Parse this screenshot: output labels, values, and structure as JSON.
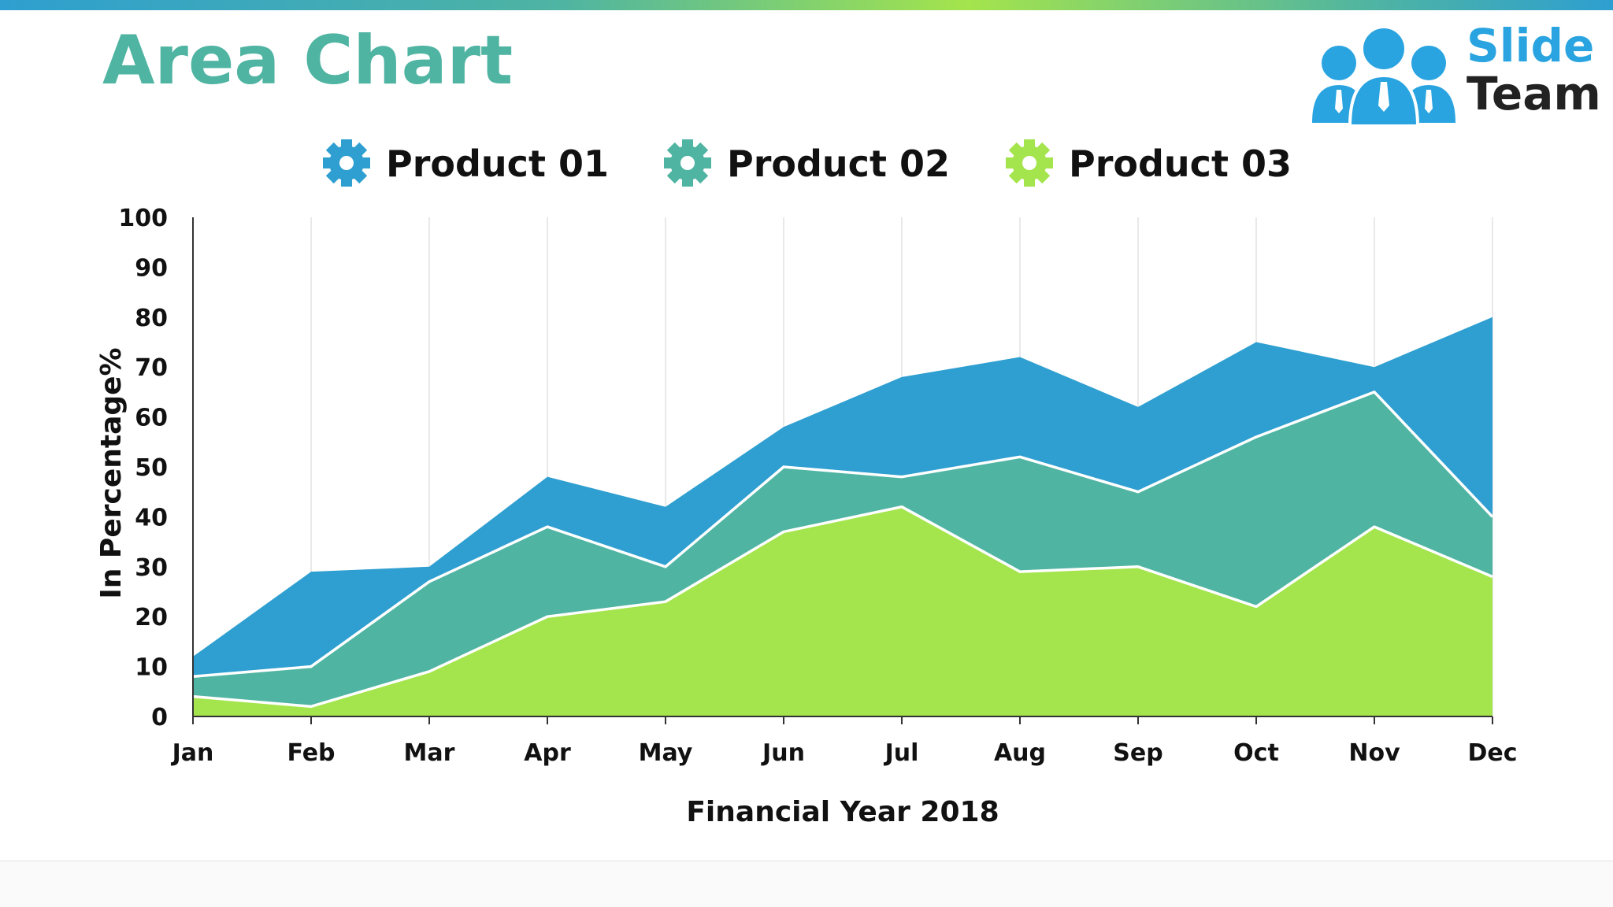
{
  "page": {
    "title": "Area Chart"
  },
  "logo": {
    "word1": "Slide",
    "word2": "Team",
    "colors": {
      "figures": "#2aa4e0",
      "word1": "#2aa4e0",
      "word2": "#222222"
    }
  },
  "chart_data": {
    "type": "area",
    "stacked": true,
    "categories": [
      "Jan",
      "Feb",
      "Mar",
      "Apr",
      "May",
      "Jun",
      "Jul",
      "Aug",
      "Sep",
      "Oct",
      "Nov",
      "Dec"
    ],
    "series": [
      {
        "name": "Product 01",
        "color": "#2e9fd0",
        "icon": "gear-icon",
        "values": [
          4,
          19,
          3,
          10,
          12,
          8,
          20,
          20,
          17,
          19,
          5,
          40
        ]
      },
      {
        "name": "Product 02",
        "color": "#4fb4a2",
        "icon": "gear-icon",
        "values": [
          4,
          8,
          18,
          18,
          7,
          13,
          6,
          23,
          15,
          34,
          27,
          12
        ]
      },
      {
        "name": "Product 03",
        "color": "#a4e44c",
        "icon": "gear-icon",
        "values": [
          4,
          2,
          9,
          20,
          23,
          37,
          42,
          29,
          30,
          22,
          38,
          28
        ]
      }
    ],
    "xlabel": "Financial Year 2018",
    "ylabel": "In Percentage%",
    "ylim": [
      0,
      100
    ],
    "yticks": [
      0,
      10,
      20,
      30,
      40,
      50,
      60,
      70,
      80,
      90,
      100
    ],
    "grid": "vertical",
    "legend_position": "top",
    "boundary_color": "#ffffff"
  }
}
